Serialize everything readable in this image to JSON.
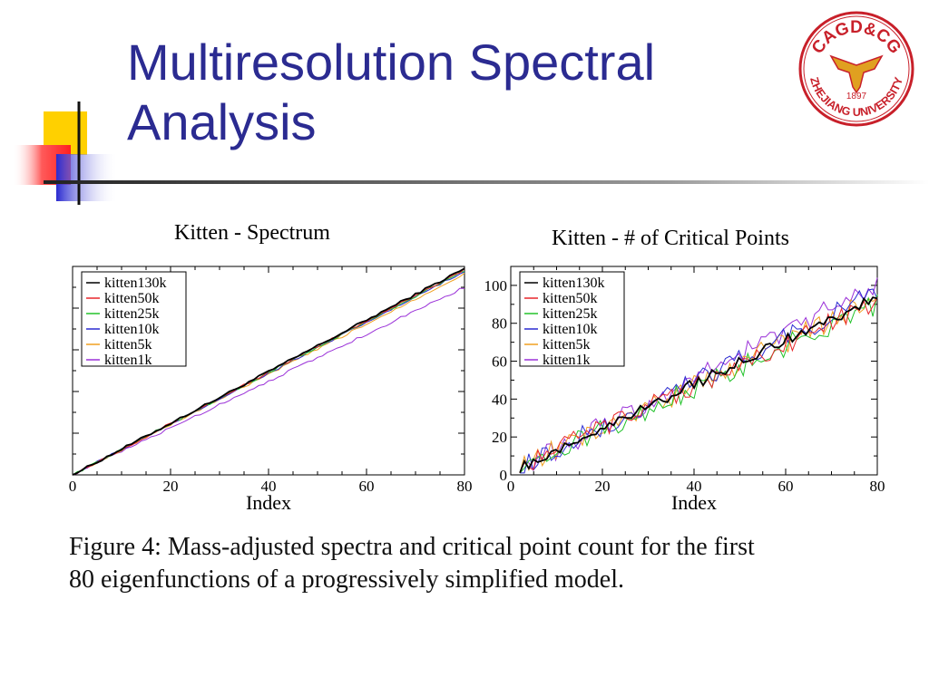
{
  "slide": {
    "title_line1": "Multiresolution Spectral",
    "title_line2": "Analysis",
    "title_color": "#2b2b91"
  },
  "logo": {
    "text_top": "CAGD&CG",
    "year": "1897",
    "text_bottom": "ZHEJIANG UNIVERSITY",
    "color": "#c8202a"
  },
  "caption": {
    "line1": "Figure 4: Mass-adjusted spectra and critical point count for the first",
    "line2": "80 eigenfunctions of a progressively simplified model."
  },
  "chart_data": [
    {
      "type": "line",
      "title": "Kitten - Spectrum",
      "xlabel": "Index",
      "ylabel": "",
      "xlim": [
        0,
        80
      ],
      "ylim": [
        0,
        1
      ],
      "xticks": [
        0,
        20,
        40,
        60,
        80
      ],
      "yticks": [],
      "grid": false,
      "legend_position": "top-left",
      "series": [
        {
          "name": "kitten130k",
          "color": "#000000",
          "slope": 0.01,
          "x": [
            0,
            80
          ],
          "y": [
            0.0,
            0.99
          ]
        },
        {
          "name": "kitten50k",
          "color": "#e8262a",
          "slope": 0.01,
          "x": [
            0,
            80
          ],
          "y": [
            0.0,
            0.985
          ]
        },
        {
          "name": "kitten25k",
          "color": "#22c22a",
          "slope": 0.01,
          "x": [
            0,
            80
          ],
          "y": [
            0.0,
            0.98
          ]
        },
        {
          "name": "kitten10k",
          "color": "#2a2ad0",
          "slope": 0.01,
          "x": [
            0,
            80
          ],
          "y": [
            0.0,
            0.975
          ]
        },
        {
          "name": "kitten5k",
          "color": "#f0a020",
          "slope": 0.01,
          "x": [
            0,
            80
          ],
          "y": [
            0.0,
            0.965
          ]
        },
        {
          "name": "kitten1k",
          "color": "#9a30d8",
          "slope": 0.01,
          "x": [
            0,
            80
          ],
          "y": [
            0.0,
            0.9
          ]
        }
      ]
    },
    {
      "type": "line",
      "title": "Kitten - # of Critical Points",
      "xlabel": "Index",
      "ylabel": "",
      "xlim": [
        0,
        80
      ],
      "ylim": [
        0,
        110
      ],
      "xticks": [
        0,
        20,
        40,
        60,
        80
      ],
      "yticks": [
        0,
        20,
        40,
        60,
        80,
        100
      ],
      "grid": false,
      "legend_position": "top-left",
      "series": [
        {
          "name": "kitten130k",
          "color": "#000000",
          "x": [
            2,
            80
          ],
          "y": [
            4,
            94
          ]
        },
        {
          "name": "kitten50k",
          "color": "#e8262a",
          "x": [
            2,
            80
          ],
          "y": [
            4,
            92
          ]
        },
        {
          "name": "kitten25k",
          "color": "#22c22a",
          "x": [
            2,
            80
          ],
          "y": [
            4,
            90
          ]
        },
        {
          "name": "kitten10k",
          "color": "#2a2ad0",
          "x": [
            2,
            80
          ],
          "y": [
            4,
            96
          ]
        },
        {
          "name": "kitten5k",
          "color": "#f0a020",
          "x": [
            2,
            80
          ],
          "y": [
            4,
            93
          ]
        },
        {
          "name": "kitten1k",
          "color": "#9a30d8",
          "x": [
            2,
            80
          ],
          "y": [
            4,
            100
          ]
        }
      ]
    }
  ]
}
